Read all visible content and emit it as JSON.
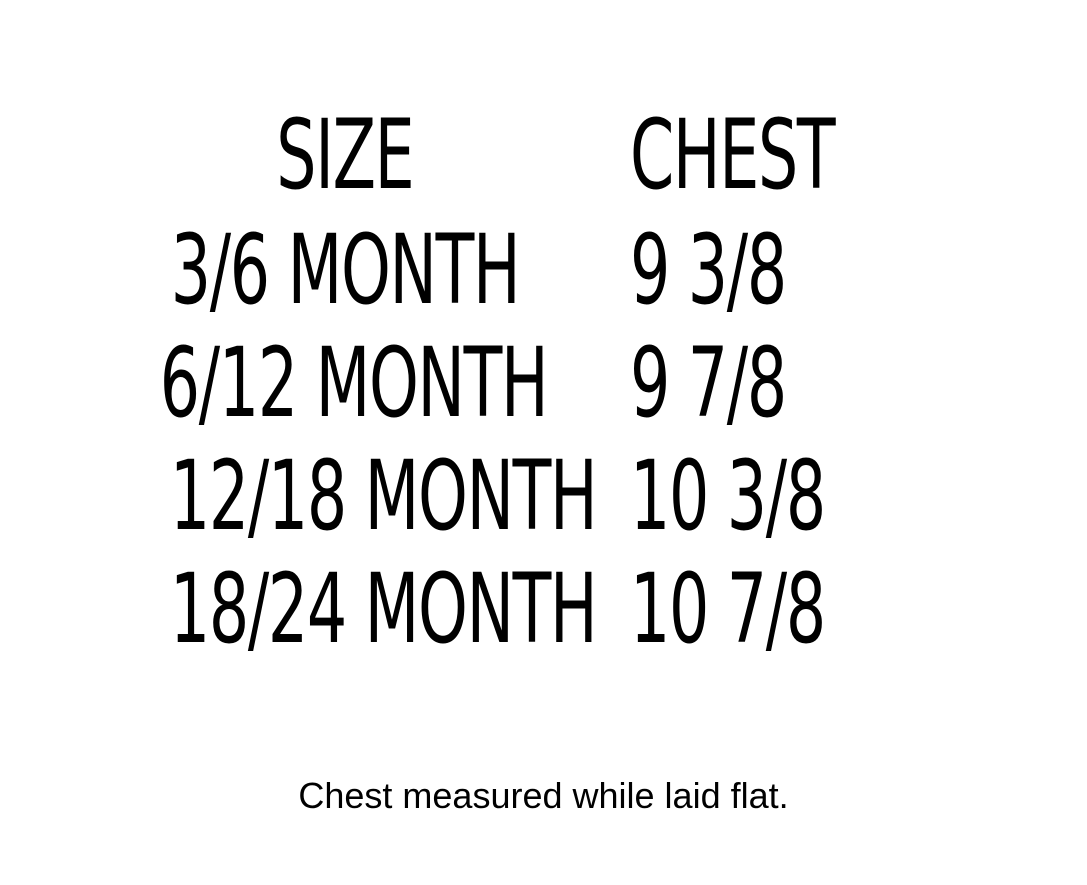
{
  "table": {
    "header": [
      "SIZE",
      "CHEST"
    ],
    "rows": [
      [
        "3/6 MONTH",
        "9 3/8"
      ],
      [
        "6/12 MONTH",
        "9 7/8"
      ],
      [
        "12/18 MONTH",
        "10 3/8"
      ],
      [
        "18/24 MONTH",
        "10 7/8"
      ]
    ]
  },
  "footer": {
    "note": "Chest measured while laid flat."
  }
}
